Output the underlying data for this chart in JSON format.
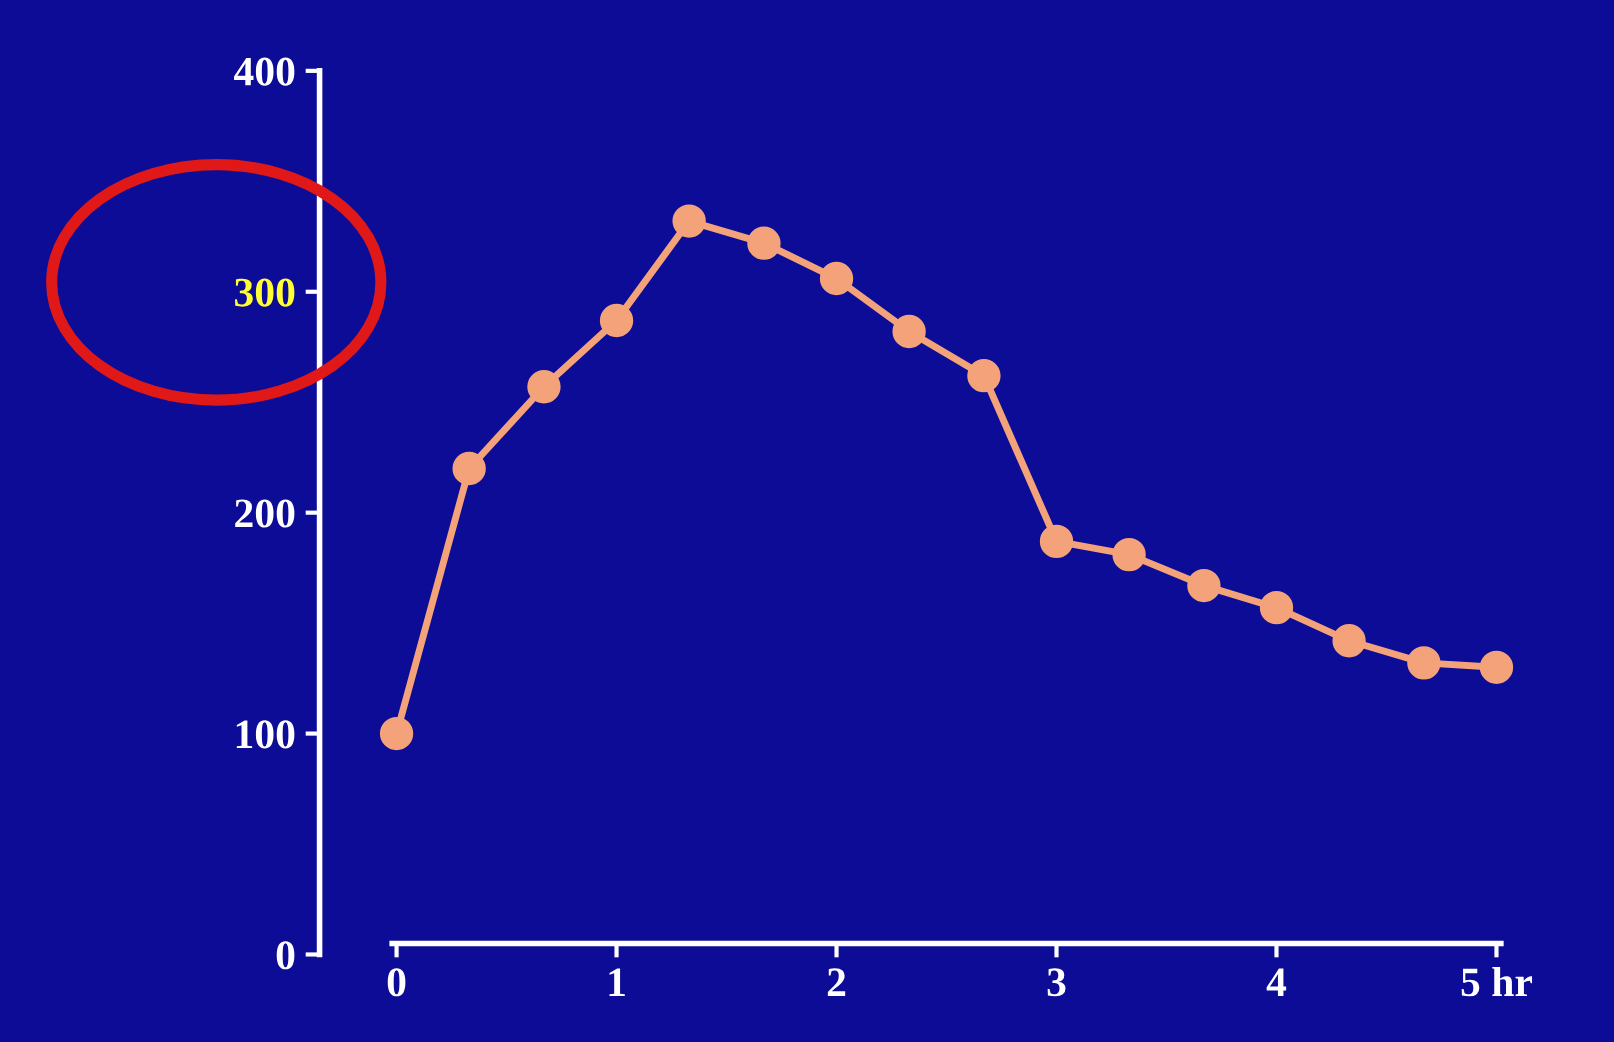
{
  "chart_data": {
    "type": "line",
    "x": [
      0,
      0.33,
      0.67,
      1,
      1.33,
      1.67,
      2,
      2.33,
      2.67,
      3,
      3.33,
      3.67,
      4,
      4.33,
      4.67,
      5
    ],
    "series": [
      {
        "color": "#f4a27a",
        "values": [
          100,
          220,
          257,
          287,
          332,
          322,
          306,
          282,
          262,
          187,
          181,
          167,
          157,
          142,
          132,
          130
        ]
      }
    ],
    "xlim": [
      -0.35,
      5.05
    ],
    "ylim": [
      0,
      400
    ],
    "xticks": [
      0,
      1,
      2,
      3,
      4,
      {
        "value": 5,
        "label": "5 hr"
      }
    ],
    "yticks": [
      0,
      100,
      200,
      300,
      400
    ],
    "marker": "circle",
    "line_style": "solid",
    "grid": false,
    "legend": false
  }
}
